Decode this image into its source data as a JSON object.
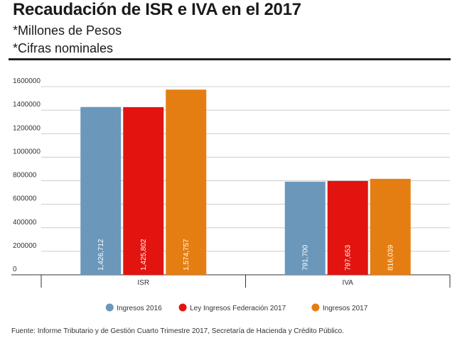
{
  "header": {
    "title": "Recaudación de ISR e IVA en el 2017",
    "subtitle1": "*Millones de Pesos",
    "subtitle2": "*Cifras nominales"
  },
  "chart_data": {
    "type": "bar",
    "title": "Recaudación de ISR e IVA en el 2017",
    "categories": [
      "ISR",
      "IVA"
    ],
    "series": [
      {
        "name": "Ingresos 2016",
        "color": "#6b97bb",
        "values": [
          1426712,
          791700
        ],
        "labels": [
          "1,426,712",
          "791,700"
        ]
      },
      {
        "name": "Ley Ingresos Federación 2017",
        "color": "#e1140f",
        "values": [
          1425802,
          797653
        ],
        "labels": [
          "1,425,802",
          "797,653"
        ]
      },
      {
        "name": "Ingresos 2017",
        "color": "#e57e12",
        "values": [
          1574757,
          816039
        ],
        "labels": [
          "1,574,757",
          "816,039"
        ]
      }
    ],
    "y_ticks": [
      "0",
      "200000",
      "400000",
      "600000",
      "800000",
      "1000000",
      "1200000",
      "1400000",
      "1600000"
    ],
    "ylim": [
      0,
      1600000
    ],
    "grid": true,
    "legend_position": "bottom"
  },
  "footer": {
    "source": "Fuente: Informe Tributario y de Gestión Cuarto Trimestre 2017, Secretaría de Hacienda y Crédito Público."
  }
}
